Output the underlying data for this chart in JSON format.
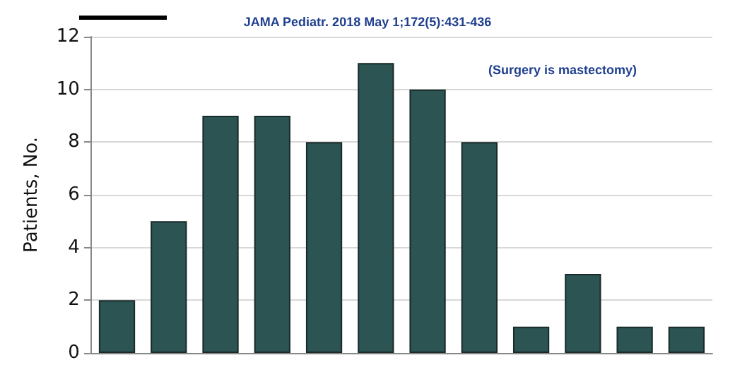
{
  "chart_data": {
    "type": "bar",
    "ylabel": "Patients, No.",
    "categories": [
      null,
      null,
      null,
      null,
      null,
      null,
      null,
      null,
      null,
      null,
      null,
      null
    ],
    "values": [
      2,
      5,
      9,
      9,
      8,
      11,
      10,
      8,
      1,
      3,
      1,
      1
    ],
    "color": "#2b5452",
    "ylim": [
      0,
      12
    ],
    "yticks": [
      0,
      2,
      4,
      6,
      8,
      10,
      12
    ],
    "grid": "y",
    "tick_labels": "y",
    "annotations": [
      "JAMA Pediatr. 2018 May 1;172(5):431-436",
      "(Surgery is mastectomy)"
    ]
  }
}
